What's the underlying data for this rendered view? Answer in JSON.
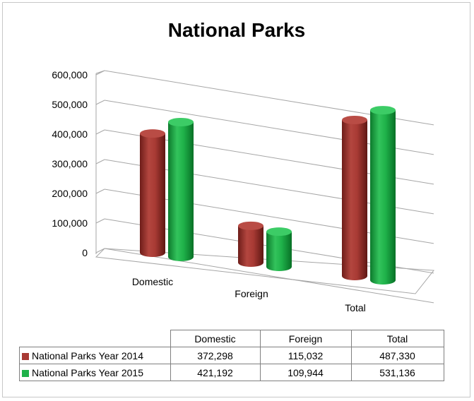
{
  "chart_data": {
    "type": "bar",
    "style": "3d-cylinder",
    "title": "National Parks",
    "categories": [
      "Domestic",
      "Foreign",
      "Total"
    ],
    "series": [
      {
        "name": "National Parks Year 2014",
        "color": "#a83a34",
        "values": [
          372298,
          115032,
          487330
        ]
      },
      {
        "name": "National Parks Year 2015",
        "color": "#1fb24a",
        "values": [
          421192,
          109944,
          531136
        ]
      }
    ],
    "ylim": [
      0,
      600000
    ],
    "y_ticks": [
      "0",
      "100,000",
      "200,000",
      "300,000",
      "400,000",
      "500,000",
      "600,000"
    ],
    "grid": true,
    "legend": "data-table-below"
  },
  "table": {
    "headers": [
      "Domestic",
      "Foreign",
      "Total"
    ],
    "rows": [
      {
        "name": "National Parks Year 2014",
        "cells": [
          "372,298",
          "115,032",
          "487,330"
        ]
      },
      {
        "name": "National Parks Year 2015",
        "cells": [
          "421,192",
          "109,944",
          "531,136"
        ]
      }
    ]
  }
}
